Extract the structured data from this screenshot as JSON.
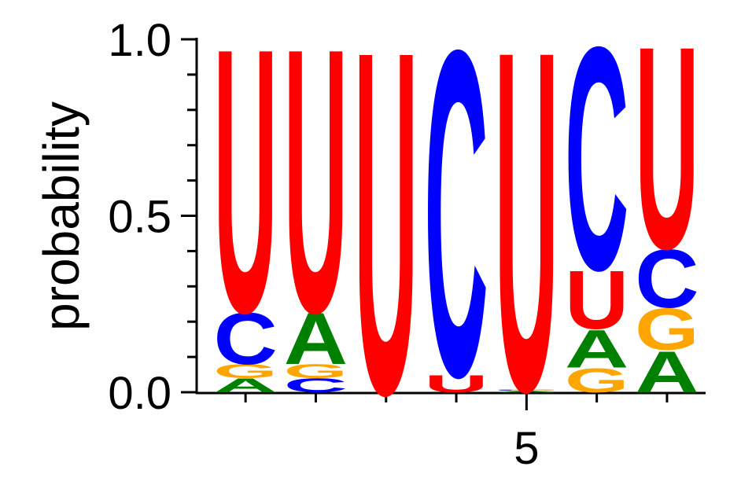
{
  "chart_data": {
    "type": "logo",
    "y_label": "probability",
    "categories": [
      null,
      null,
      null,
      null,
      "5",
      null,
      null
    ],
    "series": [
      {
        "name": "A",
        "color": "#008000",
        "values": [
          0.04,
          0.15,
          0,
          0,
          0.003,
          0.11,
          0.12
        ]
      },
      {
        "name": "C",
        "color": "#0000ff",
        "values": [
          0.15,
          0.04,
          0,
          0.95,
          0.003,
          0.65,
          0.17
        ]
      },
      {
        "name": "G",
        "color": "#ffa500",
        "values": [
          0.04,
          0.04,
          0,
          0,
          0.003,
          0.07,
          0.12
        ]
      },
      {
        "name": "U",
        "color": "#ff0000",
        "values": [
          0.77,
          0.77,
          1.0,
          0.05,
          0.991,
          0.17,
          0.59
        ]
      }
    ],
    "ylim": [
      0,
      1
    ],
    "yticks": [
      {
        "value": 0,
        "label": "0.0"
      },
      0.5,
      {
        "value": 1,
        "label": "1.0"
      }
    ],
    "yminorticks": [
      0.1,
      0.2,
      0.3,
      0.4,
      0.6,
      0.7,
      0.8,
      0.9
    ]
  }
}
